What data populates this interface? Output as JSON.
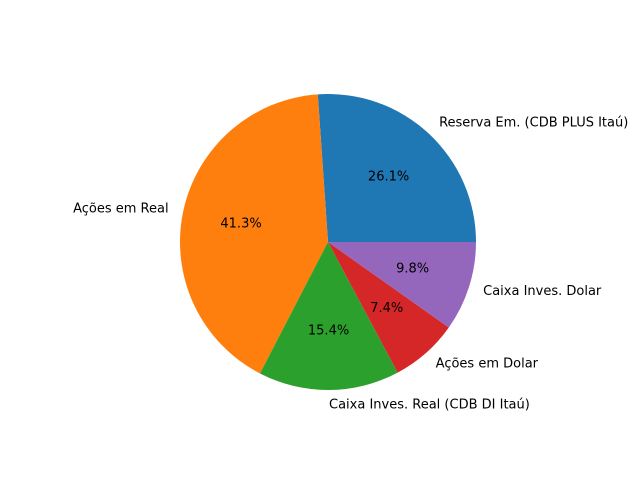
{
  "chart_data": {
    "type": "pie",
    "start_angle_deg": 0,
    "direction": "counterclockwise",
    "slices": [
      {
        "label": "Reserva Em. (CDB PLUS Itaú)",
        "value": 26.1,
        "pct_label": "26.1%",
        "color": "#1f77b4"
      },
      {
        "label": "Ações em Real",
        "value": 41.3,
        "pct_label": "41.3%",
        "color": "#ff7f0e"
      },
      {
        "label": "Caixa Inves. Real (CDB DI Itaú)",
        "value": 15.4,
        "pct_label": "15.4%",
        "color": "#2ca02c"
      },
      {
        "label": "Ações em Dolar",
        "value": 7.4,
        "pct_label": "7.4%",
        "color": "#d62728"
      },
      {
        "label": "Caixa Inves. Dolar",
        "value": 9.8,
        "pct_label": "9.8%",
        "color": "#9467bd"
      }
    ]
  }
}
